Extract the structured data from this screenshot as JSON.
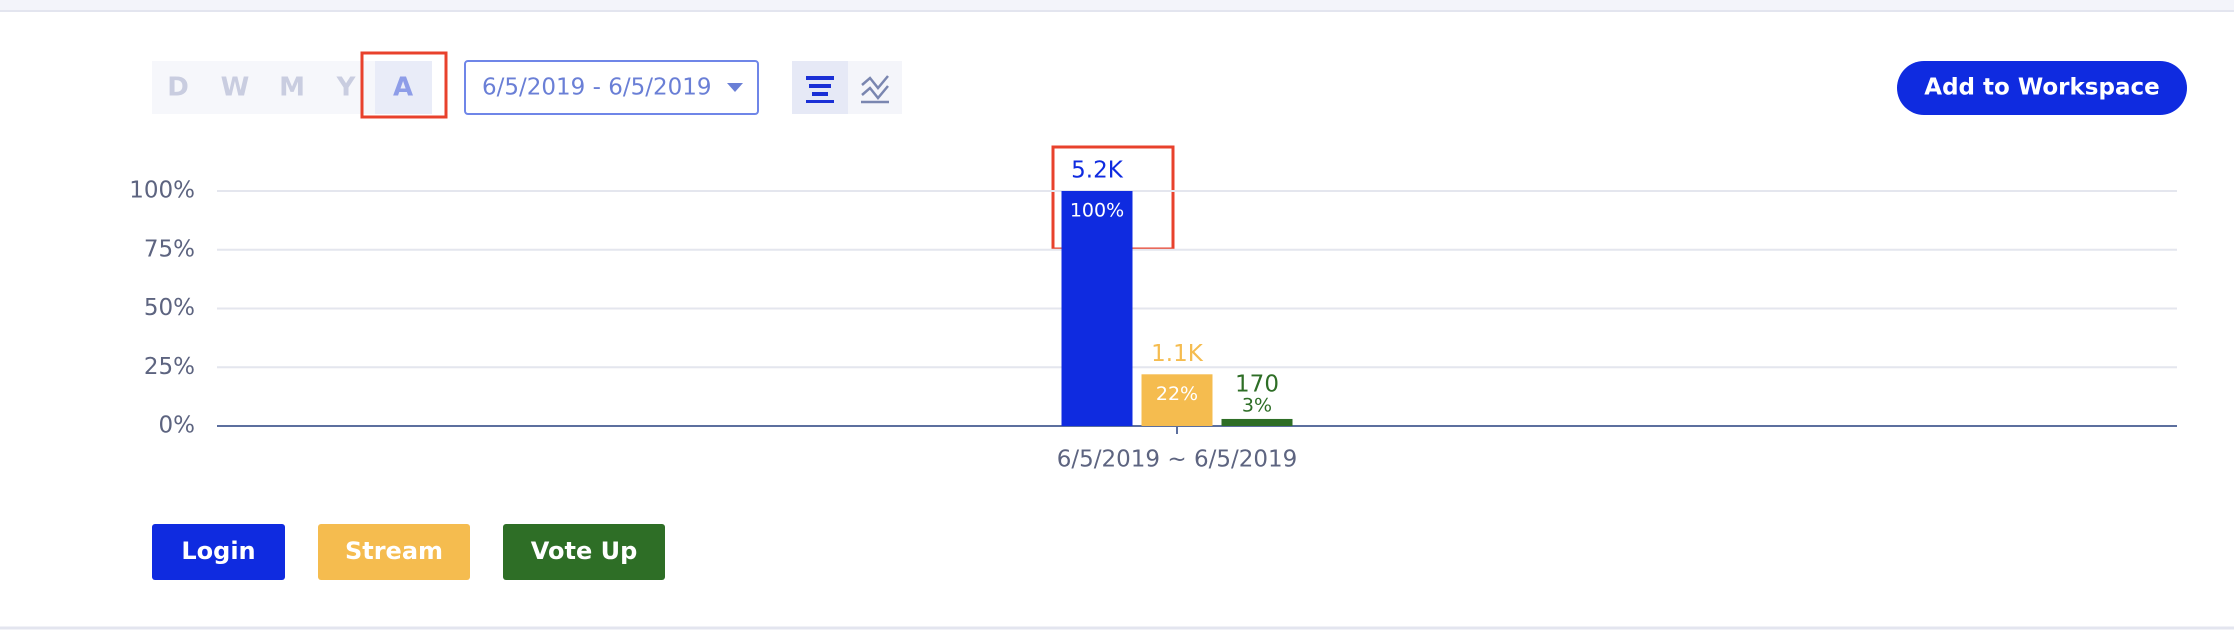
{
  "toolbar": {
    "periods": [
      "D",
      "W",
      "M",
      "Y",
      "A"
    ],
    "date_range": "6/5/2019 - 6/5/2019",
    "action": "Add to Workspace"
  },
  "chart_data": {
    "type": "bar",
    "categories": [
      "6/5/2019 ~ 6/5/2019"
    ],
    "series": [
      {
        "name": "Login",
        "color": "#0f2be0",
        "values": [
          100
        ],
        "value_labels": [
          "100%"
        ],
        "totals": [
          5200
        ],
        "total_labels": [
          "5.2K"
        ]
      },
      {
        "name": "Stream",
        "color": "#f5bc4f",
        "values": [
          22
        ],
        "value_labels": [
          "22%"
        ],
        "totals": [
          1100
        ],
        "total_labels": [
          "1.1K"
        ]
      },
      {
        "name": "Vote Up",
        "color": "#2e6e26",
        "values": [
          3
        ],
        "value_labels": [
          "3%"
        ],
        "totals": [
          170
        ],
        "total_labels": [
          "170"
        ]
      }
    ],
    "ylim": [
      0,
      100
    ],
    "yticks": [
      {
        "value": 0,
        "label": "0%"
      },
      {
        "value": 25,
        "label": "25%"
      },
      {
        "value": 50,
        "label": "50%"
      },
      {
        "value": 75,
        "label": "75%"
      },
      {
        "value": 100,
        "label": "100%"
      }
    ],
    "grid": true
  }
}
